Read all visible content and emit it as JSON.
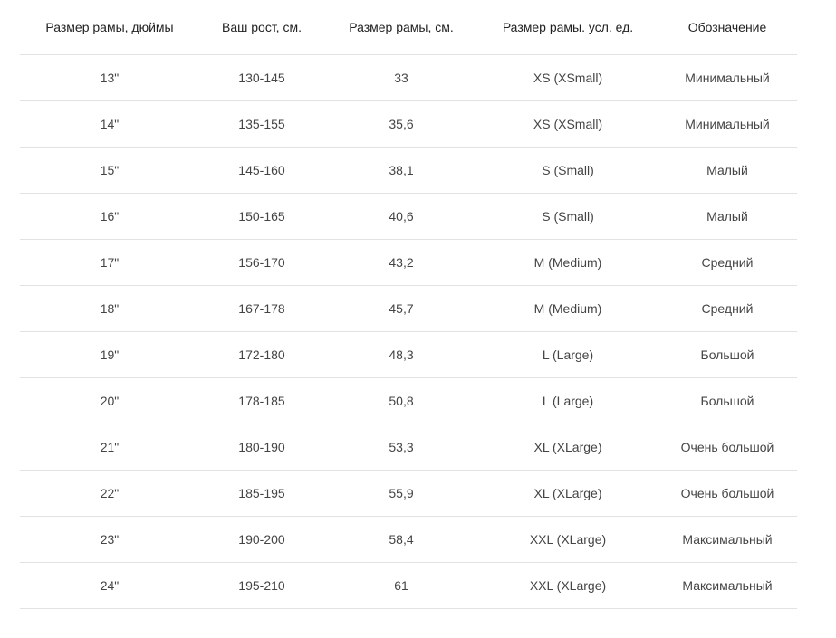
{
  "table": {
    "headers": [
      "Размер рамы, дюймы",
      "Ваш рост, см.",
      "Размер рамы, см.",
      "Размер рамы. усл. ед.",
      "Обозначение"
    ],
    "rows": [
      [
        "13\"",
        "130-145",
        "33",
        "XS (XSmall)",
        "Минимальный"
      ],
      [
        "14\"",
        "135-155",
        "35,6",
        "XS (XSmall)",
        "Минимальный"
      ],
      [
        "15\"",
        "145-160",
        "38,1",
        "S (Small)",
        "Малый"
      ],
      [
        "16\"",
        "150-165",
        "40,6",
        "S (Small)",
        "Малый"
      ],
      [
        "17\"",
        "156-170",
        "43,2",
        "M (Medium)",
        "Средний"
      ],
      [
        "18\"",
        "167-178",
        "45,7",
        "M (Medium)",
        "Средний"
      ],
      [
        "19\"",
        "172-180",
        "48,3",
        "L (Large)",
        "Большой"
      ],
      [
        "20\"",
        "178-185",
        "50,8",
        "L (Large)",
        "Большой"
      ],
      [
        "21\"",
        "180-190",
        "53,3",
        "XL (XLarge)",
        "Очень большой"
      ],
      [
        "22\"",
        "185-195",
        "55,9",
        "XL (XLarge)",
        "Очень большой"
      ],
      [
        "23\"",
        "190-200",
        "58,4",
        "XXL (XLarge)",
        "Максимальный"
      ],
      [
        "24\"",
        "195-210",
        "61",
        "XXL (XLarge)",
        "Максимальный"
      ]
    ]
  }
}
